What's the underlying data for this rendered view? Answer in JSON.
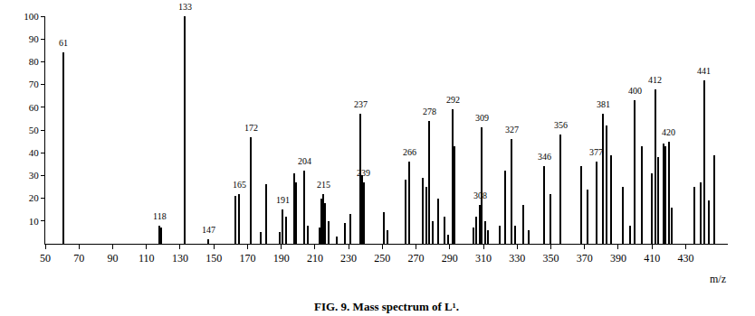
{
  "chart_data": {
    "type": "bar",
    "title": "FIG. 9. Mass spectrum of L¹.",
    "x_label": "m/z",
    "color": "#000000",
    "x": [
      61,
      118,
      119,
      133,
      147,
      163,
      165,
      172,
      178,
      181,
      189,
      191,
      193,
      198,
      199,
      204,
      206,
      213,
      214,
      215,
      216,
      218,
      223,
      228,
      231,
      237,
      238,
      239,
      251,
      253,
      264,
      266,
      274,
      276,
      278,
      280,
      283,
      287,
      289,
      292,
      293,
      304,
      306,
      308,
      309,
      311,
      313,
      320,
      323,
      327,
      329,
      334,
      337,
      346,
      350,
      356,
      368,
      372,
      377,
      381,
      383,
      386,
      393,
      397,
      400,
      404,
      410,
      412,
      414,
      417,
      418,
      420,
      422,
      435,
      439,
      441,
      444,
      447
    ],
    "values": [
      84,
      8,
      7,
      100,
      2,
      21,
      22,
      47,
      5,
      26,
      5,
      15,
      12,
      31,
      27,
      32,
      8,
      7,
      20,
      22,
      18,
      10,
      3,
      9,
      13,
      57,
      30,
      27,
      14,
      6,
      28,
      36,
      29,
      25,
      54,
      10,
      20,
      12,
      4,
      59,
      43,
      7,
      12,
      17,
      51,
      10,
      6,
      8,
      32,
      46,
      8,
      17,
      6,
      34,
      22,
      48,
      34,
      24,
      36,
      57,
      52,
      39,
      25,
      8,
      63,
      43,
      31,
      68,
      38,
      44,
      43,
      45,
      16,
      25,
      27,
      72,
      19,
      39
    ],
    "annotations": [
      {
        "x": 61,
        "text": "61"
      },
      {
        "x": 118,
        "text": "118"
      },
      {
        "x": 133,
        "text": "133"
      },
      {
        "x": 147,
        "text": "147"
      },
      {
        "x": 165,
        "text": "165"
      },
      {
        "x": 172,
        "text": "172"
      },
      {
        "x": 191,
        "text": "191"
      },
      {
        "x": 204,
        "text": "204"
      },
      {
        "x": 215,
        "text": "215"
      },
      {
        "x": 237,
        "text": "237"
      },
      {
        "x": 239,
        "text": "239"
      },
      {
        "x": 266,
        "text": "266"
      },
      {
        "x": 278,
        "text": "278"
      },
      {
        "x": 292,
        "text": "292"
      },
      {
        "x": 308,
        "text": "308"
      },
      {
        "x": 309,
        "text": "309"
      },
      {
        "x": 327,
        "text": "327"
      },
      {
        "x": 346,
        "text": "346"
      },
      {
        "x": 356,
        "text": "356"
      },
      {
        "x": 377,
        "text": "377"
      },
      {
        "x": 381,
        "text": "381"
      },
      {
        "x": 400,
        "text": "400"
      },
      {
        "x": 412,
        "text": "412"
      },
      {
        "x": 420,
        "text": "420"
      },
      {
        "x": 441,
        "text": "441"
      }
    ],
    "xlim": [
      50,
      455
    ],
    "xticks": [
      50,
      70,
      90,
      110,
      130,
      150,
      170,
      190,
      210,
      230,
      250,
      270,
      290,
      310,
      330,
      350,
      370,
      390,
      410,
      430
    ],
    "ylim": [
      0,
      100
    ],
    "yticks": [
      10,
      20,
      30,
      40,
      50,
      60,
      70,
      80,
      90,
      100
    ],
    "grid": false
  }
}
